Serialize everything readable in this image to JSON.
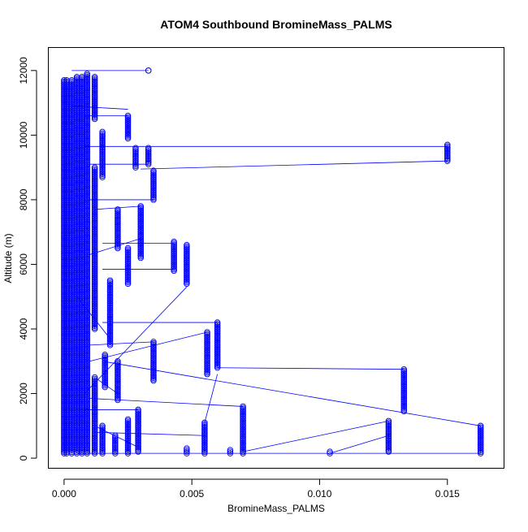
{
  "chart_data": {
    "type": "scatter",
    "title": "ATOM4 Southbound BromineMass_PALMS",
    "xlabel": "BromineMass_PALMS",
    "ylabel": "Altitude (m)",
    "xlim": [
      -0.0006,
      0.0172
    ],
    "ylim": [
      -300,
      12700
    ],
    "x_ticks": [
      0.0,
      0.005,
      0.01,
      0.015
    ],
    "x_tick_labels": [
      "0.000",
      "0.005",
      "0.010",
      "0.015"
    ],
    "y_ticks": [
      0,
      2000,
      4000,
      6000,
      8000,
      10000,
      12000
    ],
    "y_tick_labels": [
      "0",
      "2000",
      "4000",
      "6000",
      "8000",
      "10000",
      "12000"
    ],
    "grid": false,
    "legend": "none",
    "series_color": "#0000ff",
    "columns": [
      {
        "x": 0.015,
        "y_min": 9200,
        "y_max": 9700
      },
      {
        "x": 0.0163,
        "y_min": 150,
        "y_max": 1000
      },
      {
        "x": 0.0133,
        "y_min": 1450,
        "y_max": 2750
      },
      {
        "x": 0.0127,
        "y_min": 200,
        "y_max": 1150
      },
      {
        "x": 0.0104,
        "y_min": 150,
        "y_max": 200
      },
      {
        "x": 0.007,
        "y_min": 150,
        "y_max": 1600
      },
      {
        "x": 0.0065,
        "y_min": 150,
        "y_max": 250
      },
      {
        "x": 0.006,
        "y_min": 2800,
        "y_max": 4200
      },
      {
        "x": 0.0056,
        "y_min": 2600,
        "y_max": 3900
      },
      {
        "x": 0.0055,
        "y_min": 150,
        "y_max": 1100
      },
      {
        "x": 0.0048,
        "y_min": 5400,
        "y_max": 6600
      },
      {
        "x": 0.0048,
        "y_min": 150,
        "y_max": 300
      },
      {
        "x": 0.0043,
        "y_min": 5800,
        "y_max": 6700
      },
      {
        "x": 0.0035,
        "y_min": 2400,
        "y_max": 3600
      },
      {
        "x": 0.0035,
        "y_min": 8000,
        "y_max": 8900
      },
      {
        "x": 0.0033,
        "y_min": 9100,
        "y_max": 9600
      },
      {
        "x": 0.0033,
        "y_min": 12000,
        "y_max": 12000
      },
      {
        "x": 0.003,
        "y_min": 6200,
        "y_max": 7800
      },
      {
        "x": 0.0029,
        "y_min": 200,
        "y_max": 1500
      },
      {
        "x": 0.0028,
        "y_min": 9000,
        "y_max": 9600
      },
      {
        "x": 0.0025,
        "y_min": 5400,
        "y_max": 6500
      },
      {
        "x": 0.0025,
        "y_min": 9900,
        "y_max": 10600
      },
      {
        "x": 0.0025,
        "y_min": 150,
        "y_max": 1200
      },
      {
        "x": 0.0021,
        "y_min": 6500,
        "y_max": 7700
      },
      {
        "x": 0.0021,
        "y_min": 1800,
        "y_max": 3000
      },
      {
        "x": 0.002,
        "y_min": 150,
        "y_max": 700
      },
      {
        "x": 0.0018,
        "y_min": 3500,
        "y_max": 5500
      },
      {
        "x": 0.0016,
        "y_min": 2200,
        "y_max": 3200
      },
      {
        "x": 0.0015,
        "y_min": 150,
        "y_max": 1000
      },
      {
        "x": 0.0015,
        "y_min": 8700,
        "y_max": 10100
      },
      {
        "x": 0.0012,
        "y_min": 4000,
        "y_max": 9000
      },
      {
        "x": 0.0012,
        "y_min": 150,
        "y_max": 2500
      },
      {
        "x": 0.0012,
        "y_min": 10500,
        "y_max": 11800
      },
      {
        "x": 0.0009,
        "y_min": 150,
        "y_max": 11900
      },
      {
        "x": 0.0007,
        "y_min": 150,
        "y_max": 11800
      },
      {
        "x": 0.0005,
        "y_min": 150,
        "y_max": 11800
      },
      {
        "x": 0.0003,
        "y_min": 150,
        "y_max": 11700
      },
      {
        "x": 0.0001,
        "y_min": 150,
        "y_max": 11700
      },
      {
        "x": 0.0,
        "y_min": 150,
        "y_max": 11700
      }
    ],
    "connectors": [
      {
        "x1": 0.0008,
        "y1": 9650,
        "x2": 0.015,
        "y2": 9650
      },
      {
        "x1": 0.003,
        "y1": 8950,
        "x2": 0.015,
        "y2": 9200
      },
      {
        "x1": 0.0015,
        "y1": 3000,
        "x2": 0.0163,
        "y2": 1000
      },
      {
        "x1": 0.0005,
        "y1": 150,
        "x2": 0.0163,
        "y2": 150
      },
      {
        "x1": 0.006,
        "y1": 2800,
        "x2": 0.0133,
        "y2": 2750
      },
      {
        "x1": 0.007,
        "y1": 200,
        "x2": 0.0127,
        "y2": 1150
      },
      {
        "x1": 0.0104,
        "y1": 150,
        "x2": 0.0127,
        "y2": 700
      },
      {
        "x1": 0.001,
        "y1": 1850,
        "x2": 0.007,
        "y2": 1600
      },
      {
        "x1": 0.0015,
        "y1": 4200,
        "x2": 0.006,
        "y2": 4200
      },
      {
        "x1": 0.0008,
        "y1": 2000,
        "x2": 0.0048,
        "y2": 5300
      },
      {
        "x1": 0.0015,
        "y1": 6650,
        "x2": 0.0043,
        "y2": 6650
      },
      {
        "x1": 0.0015,
        "y1": 5850,
        "x2": 0.0043,
        "y2": 5850
      },
      {
        "x1": 0.001,
        "y1": 3000,
        "x2": 0.0056,
        "y2": 3900
      },
      {
        "x1": 0.0055,
        "y1": 1100,
        "x2": 0.006,
        "y2": 2600
      },
      {
        "x1": 0.001,
        "y1": 8000,
        "x2": 0.0035,
        "y2": 8000
      },
      {
        "x1": 0.0012,
        "y1": 7700,
        "x2": 0.003,
        "y2": 7800
      },
      {
        "x1": 0.001,
        "y1": 3500,
        "x2": 0.0035,
        "y2": 3600
      },
      {
        "x1": 0.0012,
        "y1": 800,
        "x2": 0.0055,
        "y2": 700
      },
      {
        "x1": 0.0008,
        "y1": 1500,
        "x2": 0.0029,
        "y2": 1500
      },
      {
        "x1": 0.0005,
        "y1": 5000,
        "x2": 0.0018,
        "y2": 3700
      },
      {
        "x1": 0.0003,
        "y1": 12000,
        "x2": 0.0033,
        "y2": 12000
      },
      {
        "x1": 0.001,
        "y1": 9100,
        "x2": 0.0033,
        "y2": 9100
      },
      {
        "x1": 0.0008,
        "y1": 10600,
        "x2": 0.0025,
        "y2": 10600
      },
      {
        "x1": 0.001,
        "y1": 6300,
        "x2": 0.003,
        "y2": 6800
      },
      {
        "x1": 0.0012,
        "y1": 2500,
        "x2": 0.0021,
        "y2": 2000
      },
      {
        "x1": 0.0003,
        "y1": 10900,
        "x2": 0.0025,
        "y2": 10800
      },
      {
        "x1": 0.0012,
        "y1": 1000,
        "x2": 0.003,
        "y2": 300
      }
    ]
  }
}
